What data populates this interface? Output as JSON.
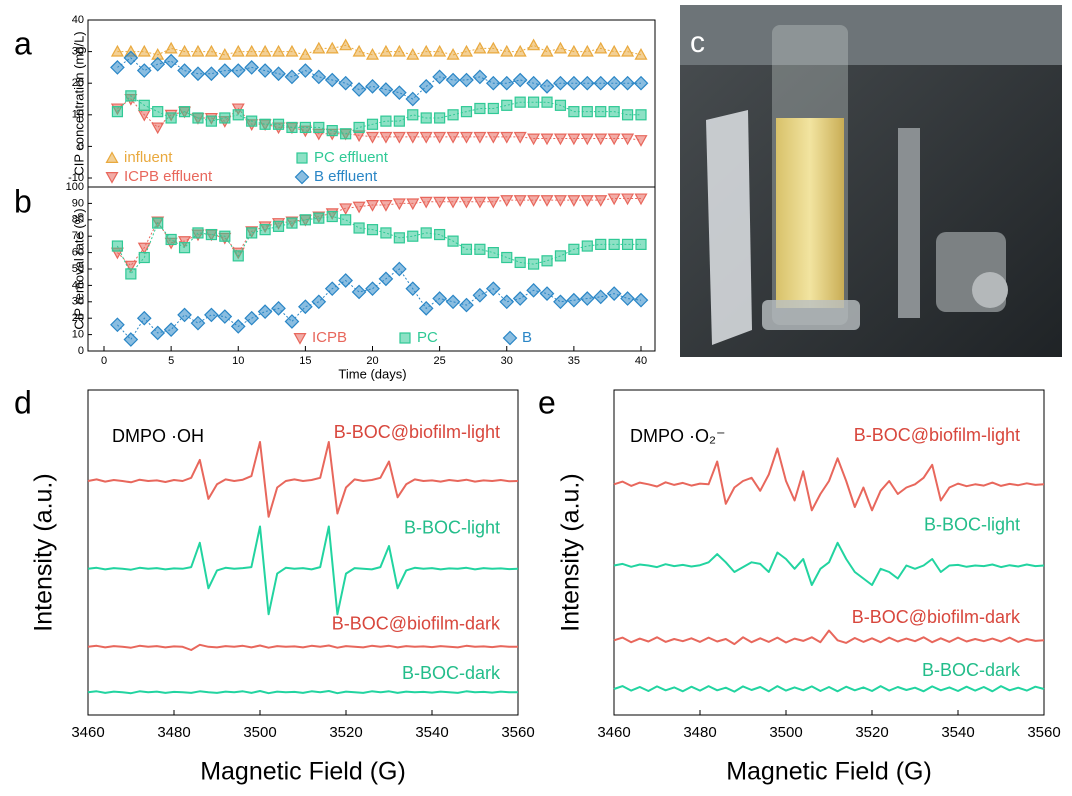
{
  "chart_data": [
    {
      "type": "line",
      "label": "a",
      "y_label": "CIP concentration (mg/L)",
      "x": [
        1,
        2,
        3,
        4,
        5,
        6,
        7,
        8,
        9,
        10,
        11,
        12,
        13,
        14,
        15,
        16,
        17,
        18,
        19,
        20,
        21,
        22,
        23,
        24,
        25,
        26,
        27,
        28,
        29,
        30,
        31,
        32,
        33,
        34,
        35,
        36,
        37,
        38,
        39,
        40
      ],
      "xlim": [
        0,
        40
      ],
      "ylim": [
        -10,
        40
      ],
      "yticks": [
        -10,
        0,
        10,
        20,
        30,
        40
      ],
      "series": [
        {
          "name": "influent",
          "color": "#e9a93e",
          "marker": "^",
          "values": [
            30,
            30,
            30,
            29,
            31,
            30,
            30,
            30,
            29,
            30,
            30,
            30,
            30,
            30,
            29,
            31,
            31,
            32,
            30,
            29,
            30,
            30,
            29,
            30,
            30,
            29,
            30,
            31,
            31,
            30,
            30,
            32,
            30,
            31,
            30,
            30,
            31,
            30,
            30,
            29
          ]
        },
        {
          "name": "ICPB effluent",
          "color": "#e8675c",
          "marker": "v",
          "values": [
            12,
            15,
            10,
            6,
            10,
            11,
            9,
            9,
            8,
            12,
            7,
            7,
            6,
            6,
            5,
            4,
            4,
            4,
            3.5,
            3,
            3,
            3,
            3,
            3,
            3,
            3,
            3,
            3,
            3,
            3,
            3,
            2.5,
            2.5,
            2.5,
            2.5,
            2.5,
            2.5,
            2.5,
            2.5,
            2
          ]
        },
        {
          "name": "PC effluent",
          "color": "#2fc995",
          "marker": "s",
          "values": [
            11,
            16,
            13,
            11,
            9,
            11,
            9,
            8,
            9,
            10,
            8,
            7,
            7,
            6,
            6,
            6,
            5,
            4,
            6,
            7,
            8,
            8,
            10,
            9,
            9,
            10,
            11,
            12,
            12,
            13,
            14,
            14,
            14,
            13,
            11,
            11,
            11,
            11,
            10,
            10
          ]
        },
        {
          "name": "B effluent",
          "color": "#2a86c6",
          "marker": "D",
          "values": [
            25,
            28,
            24,
            26,
            27,
            24,
            23,
            23,
            24,
            24,
            25,
            24,
            23,
            22,
            24,
            22,
            21,
            20,
            18,
            19,
            18,
            17,
            15,
            19,
            22,
            21,
            21,
            22,
            20,
            20,
            21,
            20,
            19,
            20,
            20,
            20,
            20,
            20,
            20,
            20
          ]
        }
      ]
    },
    {
      "type": "line",
      "label": "b",
      "y_label": "CIP removal rate (%)",
      "x_label": "Time (days)",
      "x": [
        1,
        2,
        3,
        4,
        5,
        6,
        7,
        8,
        9,
        10,
        11,
        12,
        13,
        14,
        15,
        16,
        17,
        18,
        19,
        20,
        21,
        22,
        23,
        24,
        25,
        26,
        27,
        28,
        29,
        30,
        31,
        32,
        33,
        34,
        35,
        36,
        37,
        38,
        39,
        40
      ],
      "xlim": [
        0,
        40
      ],
      "xticks": [
        0,
        5,
        10,
        15,
        20,
        25,
        30,
        35,
        40
      ],
      "ylim": [
        0,
        100
      ],
      "yticks": [
        0,
        10,
        20,
        30,
        40,
        50,
        60,
        70,
        80,
        90,
        100
      ],
      "series": [
        {
          "name": "ICPB",
          "color": "#e8675c",
          "marker": "v",
          "values": [
            60,
            52,
            63,
            79,
            66,
            67,
            71,
            71,
            69,
            60,
            73,
            76,
            78,
            79,
            80,
            82,
            84,
            87,
            88,
            89,
            89,
            90,
            90,
            91,
            91,
            91,
            91,
            91,
            91,
            92,
            92,
            92,
            92,
            92,
            92,
            92,
            92,
            93,
            93,
            93
          ]
        },
        {
          "name": "PC",
          "color": "#2fc995",
          "marker": "s",
          "values": [
            64,
            47,
            57,
            78,
            68,
            63,
            72,
            71,
            70,
            58,
            72,
            74,
            76,
            78,
            80,
            81,
            82,
            80,
            75,
            74,
            72,
            69,
            70,
            72,
            71,
            67,
            62,
            62,
            60,
            57,
            54,
            53,
            55,
            58,
            62,
            64,
            65,
            65,
            65,
            65
          ]
        },
        {
          "name": "B",
          "color": "#2a86c6",
          "marker": "D",
          "values": [
            16,
            7,
            20,
            11,
            13,
            22,
            17,
            22,
            21,
            15,
            20,
            24,
            26,
            18,
            27,
            30,
            38,
            43,
            36,
            38,
            44,
            50,
            38,
            26,
            32,
            30,
            28,
            34,
            38,
            30,
            32,
            37,
            35,
            30,
            31,
            32,
            33,
            35,
            32,
            31
          ]
        }
      ]
    },
    {
      "type": "photo",
      "label": "c"
    },
    {
      "type": "spectrum",
      "label": "d",
      "annotation": "DMPO ·OH",
      "y_label": "Intensity (a.u.)",
      "x_label": "Magnetic Field (G)",
      "x": [
        3460,
        3462,
        3464,
        3466,
        3468,
        3470,
        3472,
        3474,
        3476,
        3478,
        3480,
        3482,
        3484,
        3486,
        3488,
        3490,
        3492,
        3494,
        3496,
        3498,
        3500,
        3502,
        3504,
        3506,
        3508,
        3510,
        3512,
        3514,
        3516,
        3518,
        3520,
        3522,
        3524,
        3526,
        3528,
        3530,
        3532,
        3534,
        3536,
        3538,
        3540,
        3542,
        3544,
        3546,
        3548,
        3550,
        3552,
        3554,
        3556,
        3558,
        3560
      ],
      "xlim": [
        3460,
        3560
      ],
      "xticks": [
        3460,
        3480,
        3500,
        3520,
        3540,
        3560
      ],
      "ylim": [
        0,
        100
      ],
      "series": [
        {
          "name": "B-BOC@biofilm-light",
          "color": "#e8675c",
          "values": [
            72,
            72.5,
            71.8,
            72.3,
            72,
            71.6,
            72.4,
            72,
            72.2,
            71.7,
            72.3,
            72,
            73,
            78.5,
            66.5,
            71,
            72.5,
            72,
            72.4,
            73.5,
            84,
            61,
            70,
            72,
            72.5,
            72,
            72.3,
            73,
            84,
            62,
            70,
            72.5,
            72,
            72.3,
            73,
            78,
            67,
            71,
            72.5,
            72,
            72.2,
            71.8,
            72.3,
            72,
            72.4,
            71.8,
            72.2,
            72,
            72.3,
            71.9,
            72
          ]
        },
        {
          "name": "B-BOC-light",
          "color": "#22d4a0",
          "values": [
            45,
            45.3,
            44.8,
            45.2,
            45,
            44.7,
            45.3,
            45,
            45.2,
            44.8,
            45.1,
            45,
            45.5,
            53,
            39,
            44.5,
            45.3,
            45,
            45.2,
            45.5,
            58,
            31,
            43.5,
            45.3,
            45,
            45.2,
            44.8,
            45.5,
            58,
            31,
            43.5,
            45.2,
            45,
            44.8,
            45.5,
            52,
            39,
            44.5,
            45.3,
            45,
            45.2,
            44.8,
            45.1,
            45,
            45.3,
            44.8,
            45.2,
            45,
            45.1,
            44.9,
            45
          ]
        },
        {
          "name": "B-BOC@biofilm-dark",
          "color": "#e8675c",
          "values": [
            21,
            21.3,
            20.8,
            21.2,
            21,
            20.7,
            21.3,
            21,
            21.2,
            20.8,
            21.1,
            21,
            20,
            21.6,
            21,
            20.8,
            21.2,
            21,
            21.3,
            20.8,
            21.4,
            20.7,
            21.2,
            21,
            21.1,
            20.8,
            21.3,
            21,
            21.4,
            20.7,
            21.2,
            21,
            20.8,
            21.3,
            21,
            21.3,
            20.8,
            21.2,
            21,
            21.1,
            20.9,
            21.2,
            21,
            20.8,
            21.3,
            21,
            21.1,
            20.9,
            21.2,
            21,
            21
          ]
        },
        {
          "name": "B-BOC-dark",
          "color": "#22d4a0",
          "values": [
            7,
            7.3,
            6.8,
            7.2,
            7,
            6.7,
            7.3,
            7,
            7.2,
            6.8,
            7.1,
            7,
            6.8,
            7.3,
            7,
            6.8,
            7.2,
            7,
            7.3,
            6.8,
            7.4,
            6.7,
            7.2,
            7,
            7.1,
            6.8,
            7.3,
            7,
            7.4,
            6.7,
            7.2,
            7,
            6.8,
            7.3,
            7,
            7.3,
            6.8,
            7.2,
            7,
            7.1,
            6.9,
            7.2,
            7,
            6.8,
            7.3,
            7,
            7.1,
            6.9,
            7.2,
            7,
            7
          ]
        }
      ]
    },
    {
      "type": "spectrum",
      "label": "e",
      "annotation": "DMPO ·O₂⁻",
      "y_label": "Intensity (a.u.)",
      "x_label": "Magnetic Field (G)",
      "x": [
        3460,
        3462,
        3464,
        3466,
        3468,
        3470,
        3472,
        3474,
        3476,
        3478,
        3480,
        3482,
        3484,
        3486,
        3488,
        3490,
        3492,
        3494,
        3496,
        3498,
        3500,
        3502,
        3504,
        3506,
        3508,
        3510,
        3512,
        3514,
        3516,
        3518,
        3520,
        3522,
        3524,
        3526,
        3528,
        3530,
        3532,
        3534,
        3536,
        3538,
        3540,
        3542,
        3544,
        3546,
        3548,
        3550,
        3552,
        3554,
        3556,
        3558,
        3560
      ],
      "xlim": [
        3460,
        3560
      ],
      "xticks": [
        3460,
        3480,
        3500,
        3520,
        3540,
        3560
      ],
      "ylim": [
        0,
        100
      ],
      "series": [
        {
          "name": "B-BOC@biofilm-light",
          "color": "#e8675c",
          "values": [
            71,
            71.8,
            70.5,
            71.5,
            71,
            70.3,
            71.6,
            70.8,
            71.4,
            70.6,
            71.2,
            71,
            78,
            65,
            70,
            72,
            73,
            69,
            74,
            82,
            72,
            66,
            75,
            63,
            68,
            72,
            79,
            72,
            64,
            70,
            63,
            69,
            72,
            68,
            70,
            71,
            73,
            77,
            66,
            70,
            71.2,
            70.4,
            71,
            70.6,
            71.5,
            70.5,
            71.1,
            70.7,
            71.3,
            70.8,
            71
          ]
        },
        {
          "name": "B-BOC-light",
          "color": "#22d4a0",
          "values": [
            46,
            46.5,
            45.6,
            46.3,
            46,
            45.5,
            46.4,
            45.8,
            46.2,
            45.7,
            46.1,
            47,
            49.5,
            47,
            44,
            45.5,
            47,
            46.5,
            44,
            50,
            48,
            45,
            48,
            40,
            45,
            47,
            53,
            48,
            44,
            42,
            40,
            45,
            44,
            42,
            46,
            45,
            46,
            48,
            44,
            46,
            46.2,
            45.6,
            46,
            45.8,
            46.3,
            45.5,
            46.1,
            45.7,
            46.3,
            45.8,
            46
          ]
        },
        {
          "name": "B-BOC@biofilm-dark",
          "color": "#e8675c",
          "values": [
            23,
            23.8,
            22.4,
            23.5,
            22.6,
            23.9,
            22.5,
            23.4,
            22.7,
            23.6,
            22.5,
            23.8,
            22.6,
            23.4,
            21.8,
            23.9,
            22.4,
            23.6,
            22.5,
            23.8,
            22.3,
            23.5,
            22.8,
            23.9,
            22.4,
            26,
            23,
            22.2,
            23.7,
            22.5,
            23.6,
            22.4,
            23.8,
            22.6,
            23.5,
            22.7,
            23.9,
            22.4,
            23.6,
            22.5,
            23.8,
            22.6,
            23.4,
            22.7,
            23.5,
            22.6,
            23.8,
            22.5,
            23.4,
            22.8,
            23
          ]
        },
        {
          "name": "B-BOC-dark",
          "color": "#22d4a0",
          "values": [
            8,
            8.9,
            7.5,
            8.6,
            7.4,
            8.8,
            7.6,
            8.5,
            7.3,
            8.7,
            7.5,
            8.9,
            7.6,
            8.4,
            7.2,
            8.8,
            7.7,
            8.6,
            7.3,
            8.9,
            7.5,
            8.5,
            7.6,
            8.8,
            7.4,
            8.6,
            7.3,
            8.7,
            7.6,
            8.5,
            7.4,
            8.9,
            7.5,
            8.6,
            7.7,
            8.4,
            7.3,
            8.8,
            7.6,
            8.5,
            7.4,
            8.7,
            7.5,
            8.6,
            7.3,
            8.9,
            7.6,
            8.4,
            7.5,
            8.7,
            8
          ]
        }
      ]
    }
  ]
}
